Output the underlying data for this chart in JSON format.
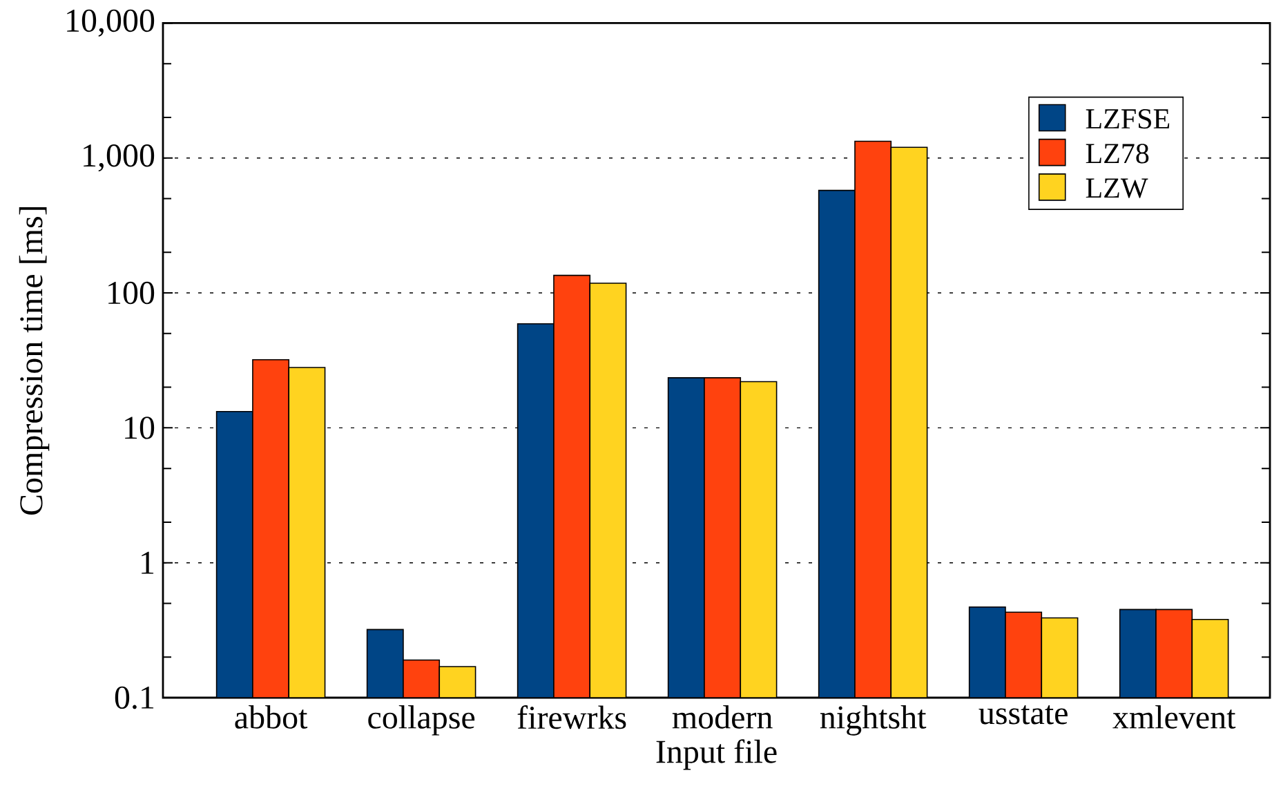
{
  "chart_data": {
    "type": "bar",
    "xlabel": "Input file",
    "ylabel": "Compression time [ms]",
    "categories": [
      "abbot",
      "collapse",
      "firewrks",
      "modern",
      "nightsht",
      "usstate",
      "xmlevent"
    ],
    "series": [
      {
        "name": "LZFSE",
        "color": "#004586",
        "values": [
          13.2,
          0.32,
          59,
          23.5,
          575,
          0.47,
          0.45
        ]
      },
      {
        "name": "LZ78",
        "color": "#ff420e",
        "values": [
          32,
          0.19,
          135,
          23.5,
          1330,
          0.43,
          0.45
        ]
      },
      {
        "name": "LZW",
        "color": "#ffd320",
        "values": [
          28,
          0.17,
          118,
          22,
          1200,
          0.39,
          0.38
        ]
      }
    ],
    "log": "y",
    "ylim": [
      0.1,
      10000
    ],
    "yticks": [
      0.1,
      {
        "value": 0.2,
        "label": null
      },
      {
        "value": 0.5,
        "label": null
      },
      1,
      {
        "value": 2,
        "label": null
      },
      {
        "value": 5,
        "label": null
      },
      10,
      {
        "value": 20,
        "label": null
      },
      {
        "value": 50,
        "label": null
      },
      100,
      {
        "value": 200,
        "label": null
      },
      {
        "value": 500,
        "label": null
      },
      {
        "value": 1000,
        "label": "1,000"
      },
      {
        "value": 2000,
        "label": null
      },
      {
        "value": 5000,
        "label": null
      },
      {
        "value": 10000,
        "label": "10,000"
      }
    ],
    "grid": "y",
    "legend": "top right"
  }
}
